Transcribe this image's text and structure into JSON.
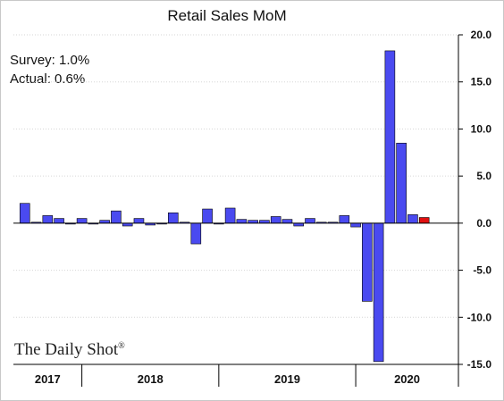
{
  "chart_data": {
    "type": "bar",
    "title": "Retail Sales MoM",
    "annotations": {
      "survey": "Survey: 1.0%",
      "actual": "Actual:  0.6%"
    },
    "watermark": "The Daily Shot",
    "watermark_mark": "®",
    "ylim": [
      -15,
      20
    ],
    "yticks": [
      20,
      15,
      10,
      5,
      0,
      -5,
      -10,
      -15
    ],
    "ytick_labels": [
      "20.0",
      "15.0",
      "10.0",
      "5.0",
      "0.0",
      "-5.0",
      "-10.0",
      "-15.0"
    ],
    "grid": true,
    "year_labels": [
      "2017",
      "2018",
      "2019",
      "2020"
    ],
    "colors": {
      "bar": "#4a4af0",
      "highlight": "#e01010"
    },
    "x_start": "2017-07",
    "x_end": "2020-10",
    "bars": [
      {
        "date": "2017-08",
        "value": 2.1
      },
      {
        "date": "2017-09",
        "value": 0.1
      },
      {
        "date": "2017-10",
        "value": 0.8
      },
      {
        "date": "2017-11",
        "value": 0.5
      },
      {
        "date": "2017-12",
        "value": -0.1
      },
      {
        "date": "2018-01",
        "value": 0.5
      },
      {
        "date": "2018-02",
        "value": -0.1
      },
      {
        "date": "2018-03",
        "value": 0.3
      },
      {
        "date": "2018-04",
        "value": 1.3
      },
      {
        "date": "2018-05",
        "value": -0.3
      },
      {
        "date": "2018-06",
        "value": 0.5
      },
      {
        "date": "2018-07",
        "value": -0.2
      },
      {
        "date": "2018-08",
        "value": -0.1
      },
      {
        "date": "2018-09",
        "value": 1.1
      },
      {
        "date": "2018-10",
        "value": 0.1
      },
      {
        "date": "2018-11",
        "value": -2.2
      },
      {
        "date": "2018-12",
        "value": 1.5
      },
      {
        "date": "2019-01",
        "value": -0.1
      },
      {
        "date": "2019-02",
        "value": 1.6
      },
      {
        "date": "2019-03",
        "value": 0.4
      },
      {
        "date": "2019-04",
        "value": 0.3
      },
      {
        "date": "2019-05",
        "value": 0.3
      },
      {
        "date": "2019-06",
        "value": 0.7
      },
      {
        "date": "2019-07",
        "value": 0.4
      },
      {
        "date": "2019-08",
        "value": -0.3
      },
      {
        "date": "2019-09",
        "value": 0.5
      },
      {
        "date": "2019-10",
        "value": 0.1
      },
      {
        "date": "2019-11",
        "value": 0.1
      },
      {
        "date": "2019-12",
        "value": 0.8
      },
      {
        "date": "2020-01",
        "value": -0.4
      },
      {
        "date": "2020-02",
        "value": -8.3
      },
      {
        "date": "2020-03",
        "value": -14.7
      },
      {
        "date": "2020-04",
        "value": 18.3
      },
      {
        "date": "2020-05",
        "value": 8.5
      },
      {
        "date": "2020-06",
        "value": 0.9
      },
      {
        "date": "2020-07",
        "value": 0.6,
        "highlight": true
      }
    ]
  }
}
